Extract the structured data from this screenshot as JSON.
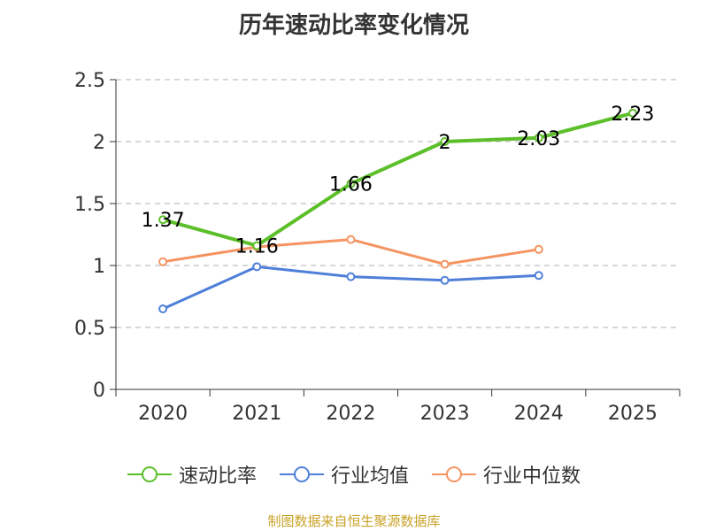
{
  "chart_data": {
    "type": "line",
    "title": "历年速动比率变化情况",
    "categories": [
      "2020",
      "2021",
      "2022",
      "2023",
      "2024",
      "2025"
    ],
    "ylim": [
      0,
      2.5
    ],
    "yticks": [
      "0",
      "0.5",
      "1",
      "1.5",
      "2",
      "2.5"
    ],
    "grid": true,
    "legend_position": "bottom",
    "series": [
      {
        "name": "速动比率",
        "color": "#5cbf2a",
        "values": [
          1.37,
          1.16,
          1.66,
          2.0,
          2.03,
          2.23
        ],
        "labels": [
          "1.37",
          "1.16",
          "1.66",
          "2",
          "2.03",
          "2.23"
        ],
        "show_labels": true
      },
      {
        "name": "行业均值",
        "color": "#4f7fd9",
        "values": [
          0.65,
          0.99,
          0.91,
          0.88,
          0.92,
          null
        ],
        "show_labels": false
      },
      {
        "name": "行业中位数",
        "color": "#f59461",
        "values": [
          1.03,
          1.15,
          1.21,
          1.01,
          1.13,
          null
        ],
        "show_labels": false
      }
    ]
  },
  "source_text": "制图数据来自恒生聚源数据库"
}
